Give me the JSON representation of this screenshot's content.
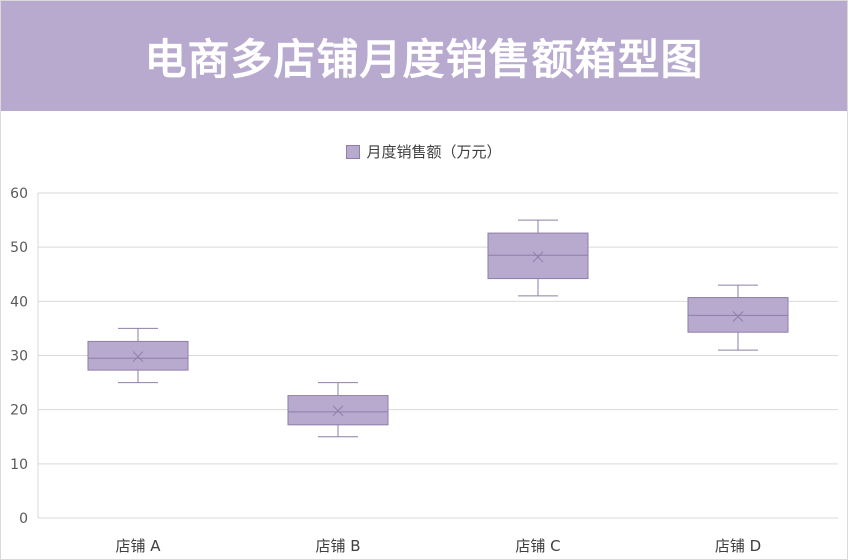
{
  "title": "电商多店铺月度销售额箱型图",
  "legend_label": "月度销售额（万元）",
  "colors": {
    "box_fill": "#b8a9cf",
    "box_stroke": "#8e7fa8",
    "title_bg": "#b8a9cf",
    "grid": "#d9d9d9"
  },
  "chart_data": {
    "type": "boxplot",
    "title": "电商多店铺月度销售额箱型图",
    "series_name": "月度销售额（万元）",
    "categories": [
      "店铺 A",
      "店铺 B",
      "店铺 C",
      "店铺 D"
    ],
    "boxes": [
      {
        "min": 25,
        "q1": 27.3,
        "median": 29.5,
        "q3": 32.6,
        "max": 35,
        "mean": 29.8
      },
      {
        "min": 15,
        "q1": 17.2,
        "median": 19.6,
        "q3": 22.6,
        "max": 25,
        "mean": 19.8
      },
      {
        "min": 41,
        "q1": 44.2,
        "median": 48.5,
        "q3": 52.6,
        "max": 55,
        "mean": 48.2
      },
      {
        "min": 31,
        "q1": 34.3,
        "median": 37.4,
        "q3": 40.7,
        "max": 43,
        "mean": 37.2
      }
    ],
    "yticks": [
      0,
      10,
      20,
      30,
      40,
      50,
      60
    ],
    "ylim": [
      0,
      60
    ],
    "grid": true,
    "legend_position": "top"
  }
}
